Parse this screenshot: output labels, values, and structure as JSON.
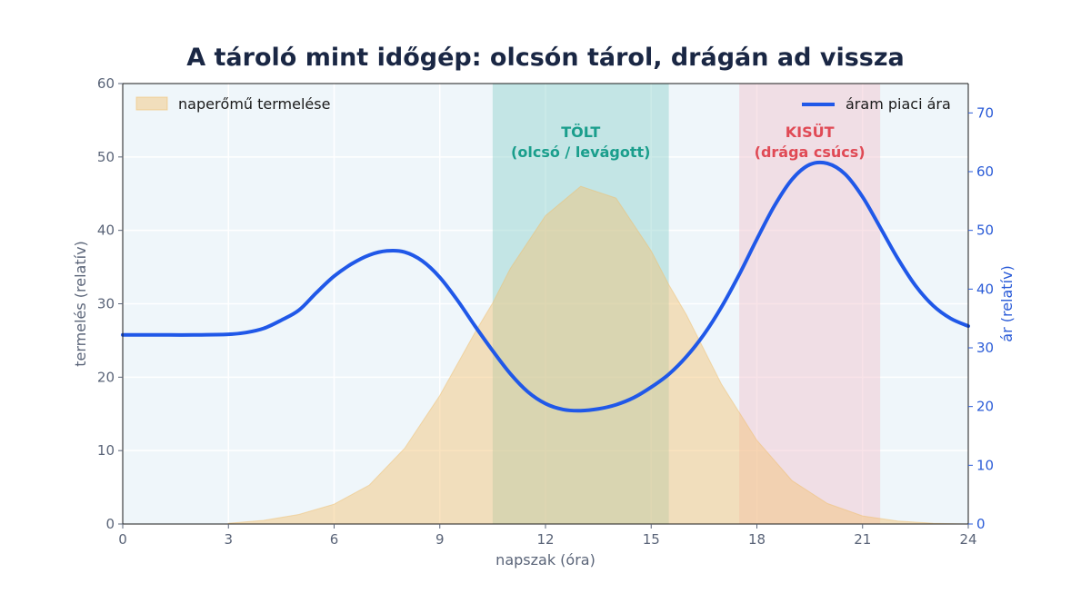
{
  "chart_data": {
    "type": "area+line",
    "title": "A tároló mint időgép: olcsón tárol, drágán ad vissza",
    "xlabel": "napszak (óra)",
    "ylabel_left": "termelés (relatív)",
    "ylabel_right": "ár (relatív)",
    "xlim": [
      0,
      24
    ],
    "ylim_left": [
      0,
      60
    ],
    "ylim_right": [
      0,
      75
    ],
    "xticks": [
      0,
      3,
      6,
      9,
      12,
      15,
      18,
      21,
      24
    ],
    "yticks_left": [
      0,
      10,
      20,
      30,
      40,
      50,
      60
    ],
    "yticks_right": [
      0,
      10,
      20,
      30,
      40,
      50,
      60,
      70
    ],
    "grid": true,
    "legend": [
      {
        "label": "naperőmű termelése",
        "position": "top-left",
        "color": "#f0d8a8"
      },
      {
        "label": "áram piaci ára",
        "position": "top-right",
        "color": "#2058e8"
      }
    ],
    "series": [
      {
        "name": "naperőmű termelése",
        "axis": "left",
        "kind": "area",
        "color": "#f0d8a8",
        "x": [
          3,
          4,
          5,
          6,
          7,
          8,
          9,
          10,
          10.5,
          11,
          12,
          13,
          14,
          15,
          15.5,
          16,
          17,
          18,
          19,
          20,
          21,
          22,
          23,
          24
        ],
        "y": [
          0.1,
          0.5,
          1.3,
          2.7,
          5.3,
          10.3,
          17.5,
          26.1,
          30.1,
          34.8,
          42.0,
          46.0,
          44.4,
          37.2,
          32.6,
          28.5,
          19.0,
          11.4,
          5.9,
          2.8,
          1.1,
          0.4,
          0.1,
          0.0
        ]
      },
      {
        "name": "áram piaci ára",
        "axis": "right",
        "kind": "line",
        "color": "#2058e8",
        "x": [
          0,
          1,
          2,
          3,
          3.5,
          4,
          4.5,
          5,
          5.5,
          6,
          6.5,
          7,
          7.5,
          8,
          8.5,
          9,
          9.5,
          10,
          10.5,
          11,
          11.5,
          12,
          12.5,
          13,
          13.5,
          14,
          14.5,
          15,
          15.5,
          16,
          16.5,
          17,
          17.5,
          18,
          18.5,
          19,
          19.5,
          20,
          20.5,
          21,
          21.5,
          22,
          22.5,
          23,
          23.5,
          24
        ],
        "y": [
          32.2,
          32.2,
          32.2,
          32.3,
          32.6,
          33.3,
          34.7,
          36.4,
          39.4,
          42.2,
          44.3,
          45.8,
          46.5,
          46.3,
          44.8,
          42.0,
          38.1,
          33.7,
          29.5,
          25.6,
          22.5,
          20.5,
          19.5,
          19.3,
          19.6,
          20.3,
          21.5,
          23.3,
          25.5,
          28.5,
          32.3,
          37.0,
          42.5,
          48.5,
          54.2,
          58.7,
          61.2,
          61.4,
          59.6,
          55.7,
          50.5,
          45.2,
          40.6,
          37.2,
          35.0,
          33.7
        ]
      }
    ],
    "bands": [
      {
        "x_start": 10.5,
        "x_end": 15.5,
        "label_line1": "TÖLT",
        "label_line2": "(olcsó / levágott)",
        "color": "#1a9e8c",
        "fill": "#8fd1cc"
      },
      {
        "x_start": 17.5,
        "x_end": 21.5,
        "label_line1": "KISÜT",
        "label_line2": "(drága csúcs)",
        "color": "#e04a55",
        "fill": "#f2c2cc"
      }
    ],
    "colors": {
      "plot_background": "#eff6fa",
      "gridline": "#ffffff",
      "title": "#1a2744",
      "left_axis": "#5a6478",
      "right_axis": "#2a5bd7"
    }
  }
}
